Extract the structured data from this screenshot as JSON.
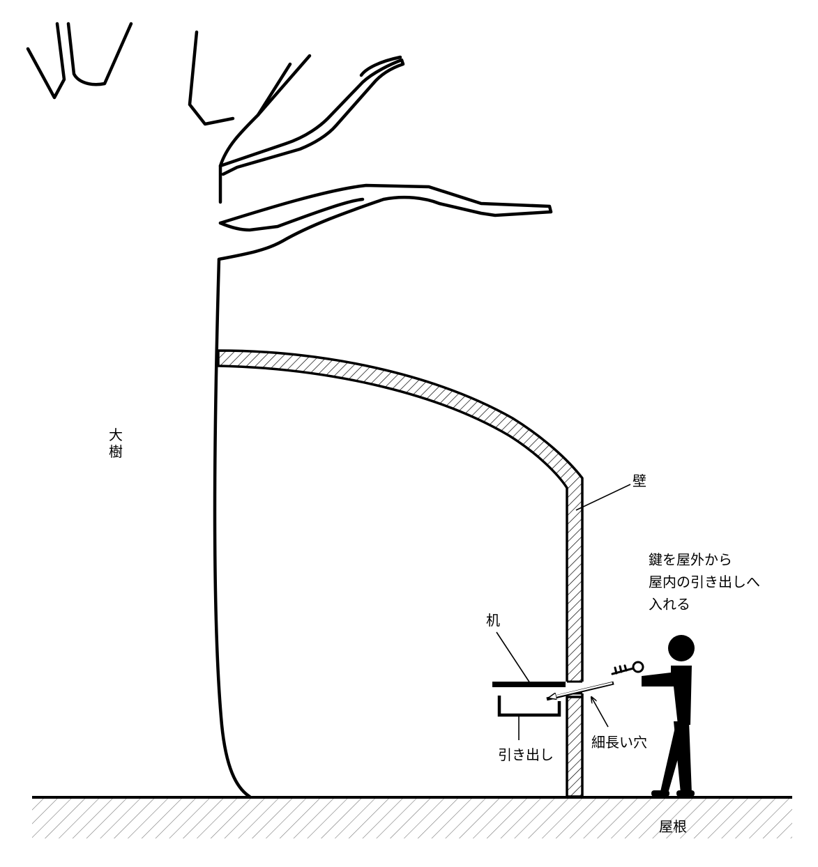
{
  "labels": {
    "tree": [
      "大",
      "樹"
    ],
    "wall": "壁",
    "desk": "机",
    "drawer": "引き出し",
    "slot": "細長い穴",
    "roof": "屋根",
    "instruction": [
      "鍵を屋外から",
      "屋内の引き出しへ",
      "入れる"
    ]
  },
  "colors": {
    "line": "#000000",
    "background": "#ffffff"
  }
}
